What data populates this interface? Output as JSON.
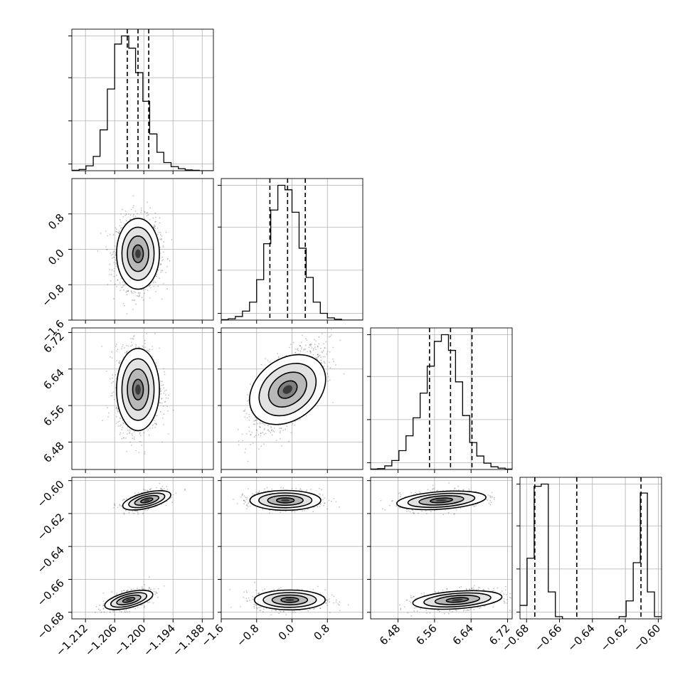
{
  "chart_data": {
    "type": "corner",
    "title": "",
    "parameters": [
      {
        "range": [
          -1.2148,
          -1.1857
        ],
        "ticks": [
          -1.212,
          -1.206,
          -1.2,
          -1.194,
          -1.188
        ],
        "tick_labels": [
          "−1.212",
          "−1.206",
          "−1.200",
          "−1.194",
          "−1.188"
        ],
        "quantiles": [
          -1.2034,
          -1.2012,
          -1.199
        ],
        "mean": -1.2012,
        "sd": 0.0022
      },
      {
        "range": [
          -1.6,
          1.6
        ],
        "ticks": [
          -1.6,
          -0.8,
          0.0,
          0.8
        ],
        "tick_labels": [
          "−1.6",
          "−0.8",
          "0.0",
          "0.8"
        ],
        "quantiles": [
          -0.5,
          -0.1,
          0.3
        ],
        "mean": -0.1,
        "sd": 0.4
      },
      {
        "range": [
          6.42,
          6.73
        ],
        "ticks": [
          6.48,
          6.56,
          6.64,
          6.72
        ],
        "tick_labels": [
          "6.48",
          "6.56",
          "6.64",
          "6.72"
        ],
        "quantiles": [
          6.549,
          6.595,
          6.642
        ],
        "mean": 6.595,
        "sd": 0.045
      },
      {
        "range": [
          -0.684,
          -0.598
        ],
        "ticks": [
          -0.68,
          -0.66,
          -0.64,
          -0.62,
          -0.6
        ],
        "tick_labels": [
          "−0.68",
          "−0.66",
          "−0.64",
          "−0.62",
          "−0.60"
        ],
        "quantiles": [
          -0.675,
          -0.6495,
          -0.6105
        ],
        "mean": -0.643,
        "sd": 0.032
      }
    ],
    "histograms": [
      {
        "parameter": 0,
        "bin_edges": [
          -1.2148,
          -1.2133,
          -1.2119,
          -1.2104,
          -1.209,
          -1.2075,
          -1.206,
          -1.2046,
          -1.2031,
          -1.2017,
          -1.2002,
          -1.1988,
          -1.1973,
          -1.1959,
          -1.1944,
          -1.1929,
          -1.1915,
          -1.19,
          -1.1886,
          -1.1871,
          -1.1857
        ],
        "counts": [
          1,
          3,
          12,
          35,
          100,
          200,
          310,
          330,
          300,
          240,
          170,
          90,
          45,
          20,
          10,
          5,
          2,
          1,
          0,
          0
        ]
      },
      {
        "parameter": 1,
        "bin_edges": [
          -1.6,
          -1.44,
          -1.28,
          -1.12,
          -0.96,
          -0.8,
          -0.64,
          -0.48,
          -0.32,
          -0.16,
          0.0,
          0.16,
          0.32,
          0.48,
          0.64,
          0.8,
          0.96,
          1.12,
          1.28,
          1.44,
          1.6
        ],
        "counts": [
          1,
          3,
          8,
          20,
          40,
          90,
          170,
          245,
          300,
          290,
          240,
          160,
          95,
          40,
          15,
          5,
          2,
          0,
          0,
          0
        ]
      },
      {
        "parameter": 2,
        "bin_edges": [
          6.42,
          6.4355,
          6.451,
          6.4665,
          6.482,
          6.4975,
          6.513,
          6.5285,
          6.544,
          6.5595,
          6.575,
          6.5905,
          6.606,
          6.6215,
          6.637,
          6.6525,
          6.668,
          6.6835,
          6.699,
          6.7145,
          6.73
        ],
        "counts": [
          1,
          2,
          8,
          20,
          42,
          75,
          115,
          170,
          230,
          285,
          300,
          265,
          195,
          120,
          60,
          30,
          14,
          6,
          3,
          1
        ]
      },
      {
        "parameter": 3,
        "bin_edges": [
          -0.684,
          -0.6797,
          -0.6754,
          -0.6711,
          -0.6668,
          -0.6625,
          -0.6582,
          -0.6539,
          -0.6496,
          -0.6453,
          -0.641,
          -0.6367,
          -0.6324,
          -0.6281,
          -0.6238,
          -0.6195,
          -0.6152,
          -0.6109,
          -0.6066,
          -0.6023,
          -0.598
        ],
        "counts": [
          30,
          135,
          295,
          300,
          60,
          5,
          0,
          0,
          0,
          0,
          0,
          0,
          0,
          0,
          5,
          40,
          125,
          280,
          60,
          5
        ]
      }
    ],
    "joint_distributions": [
      {
        "x": 0,
        "y": 1,
        "type": "scatter-density",
        "x_mean": -1.2012,
        "y_mean": -0.1,
        "correlation": 0.0
      },
      {
        "x": 0,
        "y": 2,
        "type": "scatter-density",
        "x_mean": -1.2012,
        "y_mean": 6.595,
        "correlation": 0.0
      },
      {
        "x": 1,
        "y": 2,
        "type": "scatter-density",
        "x_mean": -0.1,
        "y_mean": 6.595,
        "correlation": 0.65
      },
      {
        "x": 0,
        "y": 3,
        "type": "scatter-density",
        "modes": [
          {
            "x_mean": -1.1994,
            "y_mean": -0.612,
            "correlation": 0.55
          },
          {
            "x_mean": -1.2031,
            "y_mean": -0.6725,
            "correlation": 0.55
          }
        ]
      },
      {
        "x": 1,
        "y": 3,
        "type": "scatter-density",
        "modes": [
          {
            "x_mean": -0.15,
            "y_mean": -0.612,
            "correlation": 0.0
          },
          {
            "x_mean": -0.05,
            "y_mean": -0.6725,
            "correlation": 0.0
          }
        ]
      },
      {
        "x": 2,
        "y": 3,
        "type": "scatter-density",
        "modes": [
          {
            "x_mean": 6.575,
            "y_mean": -0.612,
            "correlation": 0.3
          },
          {
            "x_mean": 6.61,
            "y_mean": -0.6725,
            "correlation": 0.3
          }
        ]
      }
    ],
    "contour_levels_sigma": [
      0.5,
      1.0,
      1.5,
      2.0
    ],
    "grid": true,
    "colors": {
      "line": "#000000",
      "grid": "#b0b0b0",
      "points": "#555555"
    }
  }
}
